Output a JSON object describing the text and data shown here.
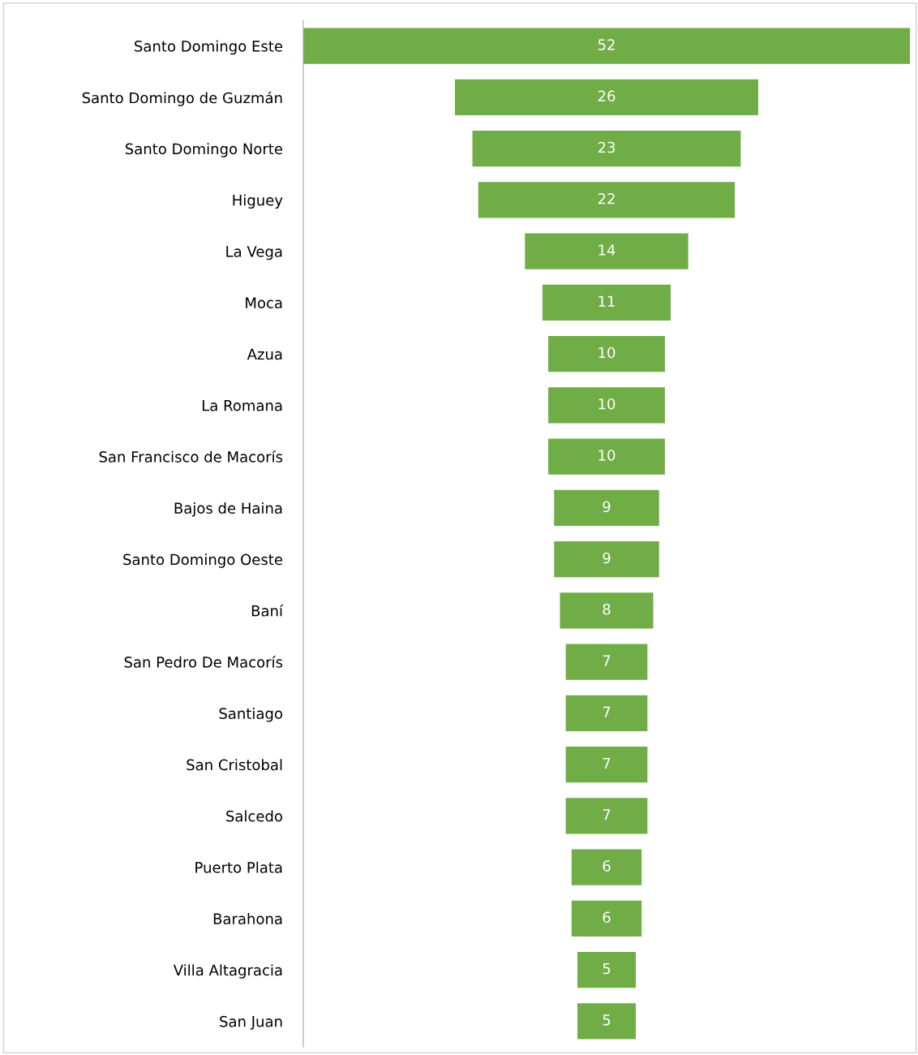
{
  "chart_data": {
    "type": "other",
    "categories": [
      "Santo Domingo Este",
      "Santo Domingo de Guzmán",
      "Santo Domingo Norte",
      "Higuey",
      "La Vega",
      "Moca",
      "Azua",
      "La Romana",
      "San Francisco de Macorís",
      "Bajos de Haina",
      "Santo Domingo Oeste",
      "Baní",
      "San Pedro De Macorís",
      "Santiago",
      "San Cristobal",
      "Salcedo",
      "Puerto Plata",
      "Barahona",
      "Villa Altagracia",
      "San Juan"
    ],
    "values": [
      52,
      26,
      23,
      22,
      14,
      11,
      10,
      10,
      10,
      9,
      9,
      8,
      7,
      7,
      7,
      7,
      6,
      6,
      5,
      5
    ],
    "color": "#70ad47",
    "data_labels": true
  }
}
